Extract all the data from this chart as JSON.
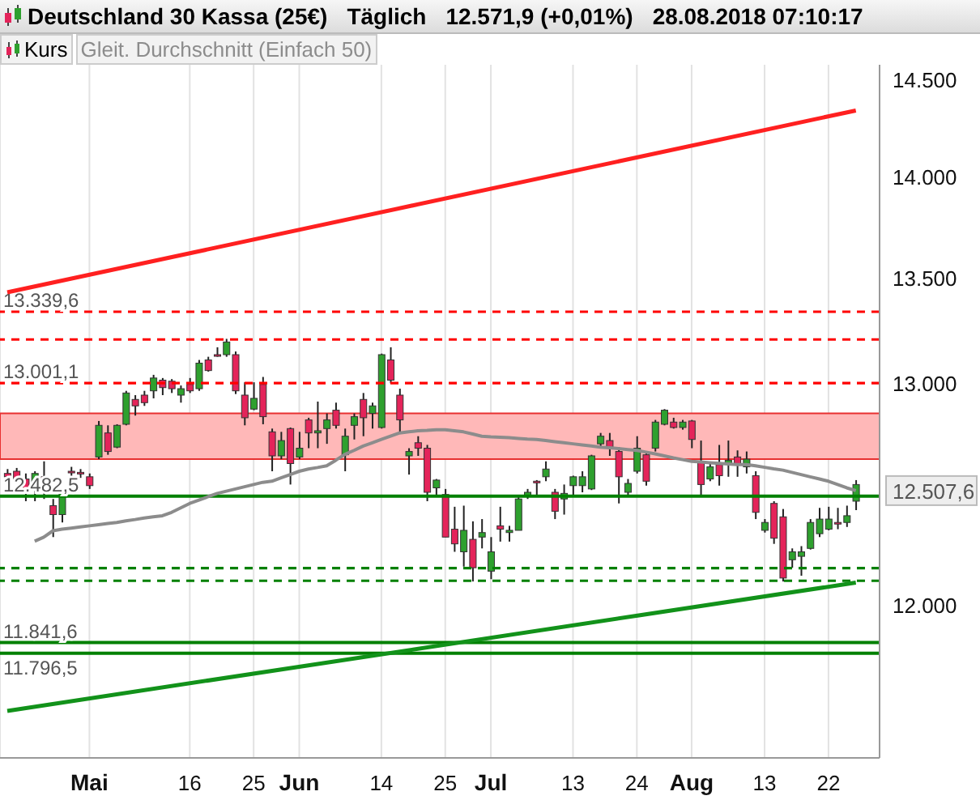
{
  "chart_data": {
    "type": "candlestick",
    "title": "Deutschland 30 Kassa (25€)",
    "annotations": [
      "Täglich",
      "12.571,9 (+0,01%)",
      "28.08.2018 07:10:17",
      "12.507,6"
    ],
    "categories": [
      null,
      null,
      null,
      null,
      null,
      null,
      null,
      null,
      null,
      "Mai",
      null,
      null,
      null,
      null,
      null,
      null,
      null,
      null,
      null,
      null,
      "16",
      null,
      null,
      null,
      null,
      null,
      null,
      "25",
      null,
      null,
      null,
      null,
      "Jun",
      null,
      null,
      null,
      null,
      null,
      null,
      null,
      null,
      "14",
      null,
      null,
      null,
      null,
      null,
      null,
      "25",
      null,
      null,
      null,
      null,
      "Jul",
      null,
      null,
      null,
      null,
      null,
      null,
      null,
      null,
      "13",
      null,
      null,
      null,
      null,
      null,
      null,
      "24",
      null,
      null,
      null,
      null,
      null,
      "Aug",
      null,
      null,
      null,
      null,
      null,
      null,
      null,
      "13",
      null,
      null,
      null,
      null,
      null,
      null,
      "22",
      null,
      null,
      null
    ],
    "series": [
      {
        "name": "Kurs",
        "ohlc": [
          [
            12585,
            12605,
            12550,
            12570
          ],
          [
            12595,
            12610,
            12550,
            12560
          ],
          [
            12560,
            12585,
            12460,
            12515
          ],
          [
            12515,
            12595,
            12460,
            12585
          ],
          [
            12570,
            12640,
            12470,
            12530
          ],
          [
            12440,
            12470,
            12300,
            12400
          ],
          [
            12400,
            12500,
            12365,
            12495
          ],
          [
            12595,
            12615,
            12570,
            12590
          ],
          [
            12590,
            12605,
            12565,
            12585
          ],
          [
            12570,
            12585,
            12515,
            12530
          ],
          [
            12660,
            12825,
            12650,
            12805
          ],
          [
            12770,
            12805,
            12670,
            12685
          ],
          [
            12705,
            12810,
            12700,
            12805
          ],
          [
            12810,
            12965,
            12805,
            12955
          ],
          [
            12925,
            12945,
            12850,
            12895
          ],
          [
            12945,
            12965,
            12895,
            12910
          ],
          [
            12965,
            13040,
            12930,
            13025
          ],
          [
            13015,
            13025,
            12945,
            12980
          ],
          [
            13010,
            13020,
            12955,
            12975
          ],
          [
            12945,
            12990,
            12910,
            12975
          ],
          [
            12995,
            13025,
            12955,
            12965
          ],
          [
            12975,
            13110,
            12965,
            13095
          ],
          [
            13110,
            13125,
            13055,
            13060
          ],
          [
            13135,
            13170,
            13125,
            13130
          ],
          [
            13135,
            13210,
            13125,
            13195
          ],
          [
            13135,
            13150,
            12950,
            12965
          ],
          [
            12945,
            13005,
            12805,
            12840
          ],
          [
            12880,
            13005,
            12875,
            12930
          ],
          [
            12995,
            13030,
            12810,
            12845
          ],
          [
            12775,
            12790,
            12595,
            12665
          ],
          [
            12665,
            12775,
            12650,
            12735
          ],
          [
            12790,
            12795,
            12535,
            12630
          ],
          [
            12660,
            12775,
            12650,
            12700
          ],
          [
            12830,
            12840,
            12700,
            12770
          ],
          [
            12770,
            12915,
            12700,
            12780
          ],
          [
            12790,
            12860,
            12720,
            12830
          ],
          [
            12875,
            12910,
            12790,
            12805
          ],
          [
            12670,
            12790,
            12595,
            12755
          ],
          [
            12805,
            12860,
            12740,
            12845
          ],
          [
            12925,
            12955,
            12755,
            12840
          ],
          [
            12860,
            12910,
            12790,
            12895
          ],
          [
            12795,
            13140,
            12790,
            13135
          ],
          [
            13110,
            13170,
            13000,
            13015
          ],
          [
            12945,
            12975,
            12770,
            12830
          ],
          [
            12665,
            12700,
            12580,
            12685
          ],
          [
            12725,
            12755,
            12665,
            12700
          ],
          [
            12700,
            12715,
            12460,
            12500
          ],
          [
            12520,
            12560,
            12480,
            12555
          ],
          [
            12490,
            12515,
            12300,
            12300
          ],
          [
            12335,
            12435,
            12235,
            12270
          ],
          [
            12235,
            12440,
            12170,
            12330
          ],
          [
            12290,
            12370,
            12105,
            12165
          ],
          [
            12300,
            12380,
            12250,
            12320
          ],
          [
            12150,
            12300,
            12115,
            12235
          ],
          [
            12350,
            12435,
            12280,
            12335
          ],
          [
            12320,
            12350,
            12280,
            12330
          ],
          [
            12330,
            12480,
            12330,
            12470
          ],
          [
            12480,
            12515,
            12470,
            12500
          ],
          [
            12550,
            12555,
            12480,
            12545
          ],
          [
            12570,
            12640,
            12550,
            12605
          ],
          [
            12500,
            12515,
            12380,
            12415
          ],
          [
            12470,
            12535,
            12400,
            12495
          ],
          [
            12530,
            12575,
            12480,
            12570
          ],
          [
            12530,
            12595,
            12500,
            12570
          ],
          [
            12515,
            12670,
            12510,
            12665
          ],
          [
            12720,
            12770,
            12705,
            12755
          ],
          [
            12735,
            12770,
            12665,
            12705
          ],
          [
            12685,
            12705,
            12450,
            12570
          ],
          [
            12500,
            12560,
            12480,
            12540
          ],
          [
            12595,
            12755,
            12585,
            12700
          ],
          [
            12670,
            12685,
            12530,
            12550
          ],
          [
            12700,
            12830,
            12685,
            12820
          ],
          [
            12810,
            12880,
            12805,
            12875
          ],
          [
            12820,
            12840,
            12790,
            12795
          ],
          [
            12795,
            12830,
            12785,
            12820
          ],
          [
            12825,
            12830,
            12700,
            12740
          ],
          [
            12635,
            12735,
            12480,
            12535
          ],
          [
            12560,
            12635,
            12550,
            12615
          ],
          [
            12625,
            12715,
            12530,
            12575
          ],
          [
            12630,
            12735,
            12570,
            12645
          ],
          [
            12660,
            12690,
            12570,
            12630
          ],
          [
            12615,
            12685,
            12585,
            12650
          ],
          [
            12575,
            12595,
            12380,
            12410
          ],
          [
            12330,
            12380,
            12320,
            12365
          ],
          [
            12450,
            12460,
            12270,
            12295
          ],
          [
            12390,
            12425,
            12105,
            12120
          ],
          [
            12200,
            12250,
            12165,
            12235
          ],
          [
            12215,
            12260,
            12130,
            12235
          ],
          [
            12250,
            12380,
            12245,
            12365
          ],
          [
            12315,
            12430,
            12300,
            12380
          ],
          [
            12335,
            12435,
            12330,
            12380
          ],
          [
            12365,
            12430,
            12335,
            12360
          ],
          [
            12365,
            12440,
            12345,
            12395
          ],
          [
            12460,
            12555,
            12420,
            12535
          ]
        ]
      },
      {
        "name": "Gleit. Durchschnitt (Einfach 50)",
        "type": "line",
        "color": "#8c8c8c",
        "values": [
          null,
          null,
          null,
          12282,
          12300,
          12328,
          12335,
          12340,
          12345,
          12350,
          12355,
          12360,
          12365,
          12372,
          12378,
          12385,
          12390,
          12395,
          12410,
          12430,
          12450,
          12465,
          12480,
          12495,
          12505,
          12515,
          12525,
          12535,
          12545,
          12550,
          12565,
          12580,
          12595,
          12605,
          12612,
          12620,
          12645,
          12672,
          12690,
          12710,
          12725,
          12740,
          12755,
          12770,
          12775,
          12780,
          12782,
          12785,
          12785,
          12780,
          12775,
          12765,
          12755,
          12752,
          12750,
          12748,
          12745,
          12742,
          12740,
          12735,
          12730,
          12725,
          12720,
          12715,
          12710,
          12705,
          12702,
          12698,
          12694,
          12690,
          12682,
          12674,
          12665,
          12656,
          12648,
          12640,
          12637,
          12634,
          12631,
          12628,
          12625,
          12625,
          12620,
          12613,
          12606,
          12600,
          12590,
          12580,
          12570,
          12560,
          12550,
          12535,
          12520,
          12507.6
        ]
      },
      {
        "type": "line",
        "color": "#ff2020",
        "values": [
          13433,
          null,
          null,
          null,
          null,
          null,
          null,
          null,
          null,
          null,
          null,
          null,
          null,
          null,
          null,
          null,
          null,
          null,
          null,
          null,
          null,
          null,
          null,
          null,
          null,
          null,
          null,
          null,
          null,
          null,
          null,
          null,
          null,
          null,
          null,
          null,
          null,
          null,
          null,
          null,
          null,
          null,
          null,
          null,
          null,
          null,
          null,
          null,
          null,
          null,
          null,
          null,
          null,
          null,
          null,
          null,
          null,
          null,
          null,
          null,
          null,
          null,
          null,
          null,
          null,
          null,
          null,
          null,
          null,
          null,
          null,
          null,
          null,
          null,
          null,
          null,
          null,
          null,
          null,
          null,
          null,
          null,
          null,
          null,
          null,
          null,
          null,
          null,
          null,
          null,
          null,
          null,
          null,
          14342
        ]
      },
      {
        "type": "line",
        "color": "#12921a",
        "values": [
          11554,
          null,
          null,
          null,
          null,
          null,
          null,
          null,
          null,
          null,
          null,
          null,
          null,
          null,
          null,
          null,
          null,
          null,
          null,
          null,
          null,
          null,
          null,
          null,
          null,
          null,
          null,
          null,
          null,
          null,
          null,
          null,
          null,
          null,
          null,
          null,
          null,
          null,
          null,
          null,
          null,
          null,
          null,
          null,
          null,
          null,
          null,
          null,
          null,
          null,
          null,
          null,
          null,
          null,
          null,
          null,
          null,
          null,
          null,
          null,
          null,
          null,
          null,
          null,
          null,
          null,
          null,
          null,
          null,
          null,
          null,
          null,
          null,
          null,
          null,
          null,
          null,
          null,
          null,
          null,
          null,
          null,
          null,
          null,
          null,
          null,
          null,
          null,
          null,
          null,
          null,
          null,
          null,
          12100
        ]
      }
    ],
    "ref_lines": [
      {
        "axis": "y",
        "value": 13339.6,
        "label": "13.339,6",
        "color": "#ff0000",
        "line_style": "dashed"
      },
      {
        "axis": "y",
        "value": 13207,
        "color": "#ff0000",
        "line_style": "dashed"
      },
      {
        "axis": "y",
        "value": 13001.1,
        "label": "13.001,1",
        "color": "#ff0000",
        "line_style": "dashed"
      },
      {
        "axis": "y",
        "value": 12482.5,
        "label": "12.482,5",
        "color": "#008000",
        "line_style": "solid"
      },
      {
        "axis": "y",
        "value": 12163,
        "color": "#008000",
        "line_style": "dashed"
      },
      {
        "axis": "y",
        "value": 12108,
        "color": "#008000",
        "line_style": "dashed"
      },
      {
        "axis": "y",
        "value": 11841.6,
        "label": "11.841,6",
        "color": "#008000",
        "line_style": "solid"
      },
      {
        "axis": "y",
        "value": 11796.5,
        "label": "11.796,5",
        "color": "#008000",
        "line_style": "solid"
      }
    ],
    "bands": [
      {
        "axis": "y",
        "from": 12650,
        "to": 12860,
        "color": "#ffb8b8"
      }
    ],
    "ylim": [
      11360,
      14580
    ],
    "yticks": [
      {
        "value": 12000,
        "label": "12.000"
      },
      {
        "value": 13000,
        "label": "13.000"
      },
      {
        "value": 13500,
        "label": "13.500"
      },
      {
        "value": 14000,
        "label": "14.000"
      },
      {
        "value": 14500,
        "label": "14.500"
      }
    ],
    "log": true,
    "grid": "x",
    "legend": "top left"
  }
}
